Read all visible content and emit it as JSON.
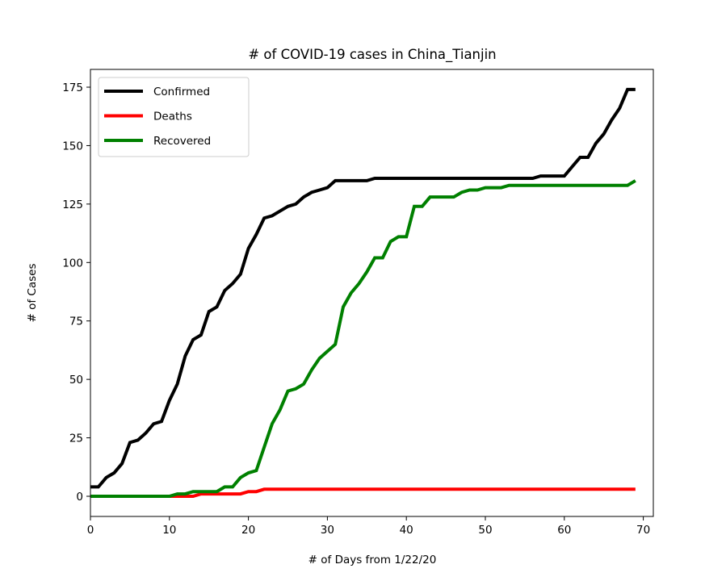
{
  "chart_data": {
    "type": "line",
    "title": "# of COVID-19 cases in China_Tianjin",
    "xlabel": "# of Days from 1/22/20",
    "ylabel": "# of Cases",
    "xlim": [
      0,
      71
    ],
    "ylim": [
      -9,
      183
    ],
    "xticks": [
      0,
      10,
      20,
      30,
      40,
      50,
      60,
      70
    ],
    "yticks": [
      0,
      25,
      50,
      75,
      100,
      125,
      150,
      175
    ],
    "grid": false,
    "legend_position": "top-left",
    "series": [
      {
        "name": "Confirmed",
        "color": "#000000",
        "values": [
          4,
          4,
          8,
          10,
          14,
          23,
          24,
          27,
          31,
          32,
          41,
          48,
          60,
          67,
          69,
          79,
          81,
          88,
          91,
          95,
          106,
          112,
          119,
          120,
          122,
          124,
          125,
          128,
          130,
          131,
          132,
          135,
          135,
          135,
          135,
          135,
          136,
          136,
          136,
          136,
          136,
          136,
          136,
          136,
          136,
          136,
          136,
          136,
          136,
          136,
          136,
          136,
          136,
          136,
          136,
          136,
          136,
          137,
          137,
          137,
          137,
          141,
          145,
          145,
          151,
          155,
          161,
          166,
          174,
          174
        ]
      },
      {
        "name": "Deaths",
        "color": "#ff0000",
        "values": [
          0,
          0,
          0,
          0,
          0,
          0,
          0,
          0,
          0,
          0,
          0,
          0,
          0,
          0,
          1,
          1,
          1,
          1,
          1,
          1,
          2,
          2,
          3,
          3,
          3,
          3,
          3,
          3,
          3,
          3,
          3,
          3,
          3,
          3,
          3,
          3,
          3,
          3,
          3,
          3,
          3,
          3,
          3,
          3,
          3,
          3,
          3,
          3,
          3,
          3,
          3,
          3,
          3,
          3,
          3,
          3,
          3,
          3,
          3,
          3,
          3,
          3,
          3,
          3,
          3,
          3,
          3,
          3,
          3,
          3
        ]
      },
      {
        "name": "Recovered",
        "color": "#008000",
        "values": [
          0,
          0,
          0,
          0,
          0,
          0,
          0,
          0,
          0,
          0,
          0,
          1,
          1,
          2,
          2,
          2,
          2,
          4,
          4,
          8,
          10,
          11,
          21,
          31,
          37,
          45,
          46,
          48,
          54,
          59,
          62,
          65,
          81,
          87,
          91,
          96,
          102,
          102,
          109,
          111,
          111,
          124,
          124,
          128,
          128,
          128,
          128,
          130,
          131,
          131,
          132,
          132,
          132,
          133,
          133,
          133,
          133,
          133,
          133,
          133,
          133,
          133,
          133,
          133,
          133,
          133,
          133,
          133,
          133,
          135
        ]
      }
    ]
  }
}
